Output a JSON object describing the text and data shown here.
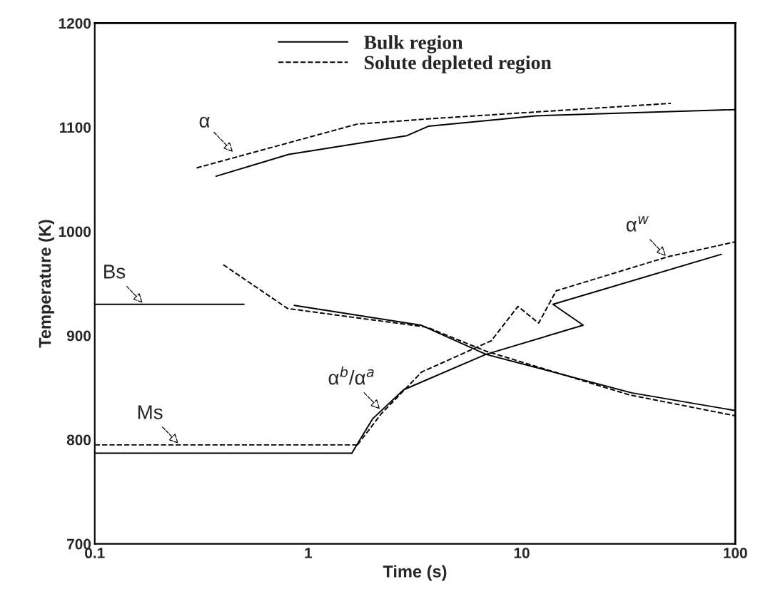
{
  "chart_data": {
    "type": "line",
    "xlabel": "Time (s)",
    "ylabel": "Temperature (K)",
    "log": "x",
    "xlim": [
      0.1,
      100
    ],
    "xticks": [
      0.1,
      1,
      10,
      100
    ],
    "ylim": [
      700,
      1200
    ],
    "yticks": [
      700,
      800,
      900,
      1000,
      1100,
      1200
    ],
    "grid": false,
    "legend": "top",
    "marker": "none",
    "series": [
      {
        "name": "Bulk region",
        "color": "#000000",
        "line_style": "solid",
        "x": [
          0.37,
          0.81,
          2.9,
          3.65,
          11.6,
          100
        ],
        "values": [
          1053,
          1074,
          1092,
          1101,
          1111,
          1117
        ]
      },
      {
        "name": "Solute depleted region",
        "color": "#000000",
        "line_style": "dashed",
        "x": [
          0.3,
          1.69,
          3.6,
          50
        ],
        "values": [
          1061,
          1103,
          1108,
          1123
        ]
      },
      {
        "color": "#000000",
        "line_style": "solid",
        "x": [
          0.1,
          0.5
        ],
        "values": [
          930,
          930
        ]
      },
      {
        "color": "#000000",
        "line_style": "solid",
        "x": [
          0.86,
          3.37,
          6.8,
          32.7,
          100
        ],
        "values": [
          929,
          910,
          882,
          845,
          828
        ]
      },
      {
        "color": "#000000",
        "line_style": "solid",
        "x": [
          0.1,
          1.6
        ],
        "values": [
          787,
          787
        ]
      },
      {
        "color": "#000000",
        "line_style": "solid",
        "x": [
          1.6,
          2.0,
          2.8,
          6.8,
          19.4,
          14,
          86
        ],
        "values": [
          787,
          820,
          848,
          882,
          910,
          930,
          978
        ]
      },
      {
        "color": "#000000",
        "line_style": "dashed",
        "x": [
          0.4,
          0.8,
          3.6,
          6.8,
          32,
          100
        ],
        "values": [
          968,
          926,
          908,
          885,
          843,
          823
        ]
      },
      {
        "color": "#000000",
        "line_style": "dashed",
        "x": [
          0.1,
          1.7
        ],
        "values": [
          795,
          795
        ]
      },
      {
        "color": "#000000",
        "line_style": "dashed",
        "x": [
          1.7,
          2.2,
          3.4,
          7.2,
          9.6,
          12,
          14.5,
          49,
          100
        ],
        "values": [
          795,
          825,
          865,
          895,
          928,
          912,
          943,
          976,
          990
        ]
      }
    ],
    "annotations": [
      {
        "text": "α",
        "x": 0.45,
        "y": 1075
      },
      {
        "text": "α$^{w}$",
        "x": 48,
        "y": 975
      },
      {
        "text": "α$^{b}$/α$^{a}$",
        "x": 2.2,
        "y": 828
      },
      {
        "text": "Bs",
        "x": 0.17,
        "y": 930
      },
      {
        "text": "Ms",
        "x": 0.25,
        "y": 795
      }
    ]
  }
}
